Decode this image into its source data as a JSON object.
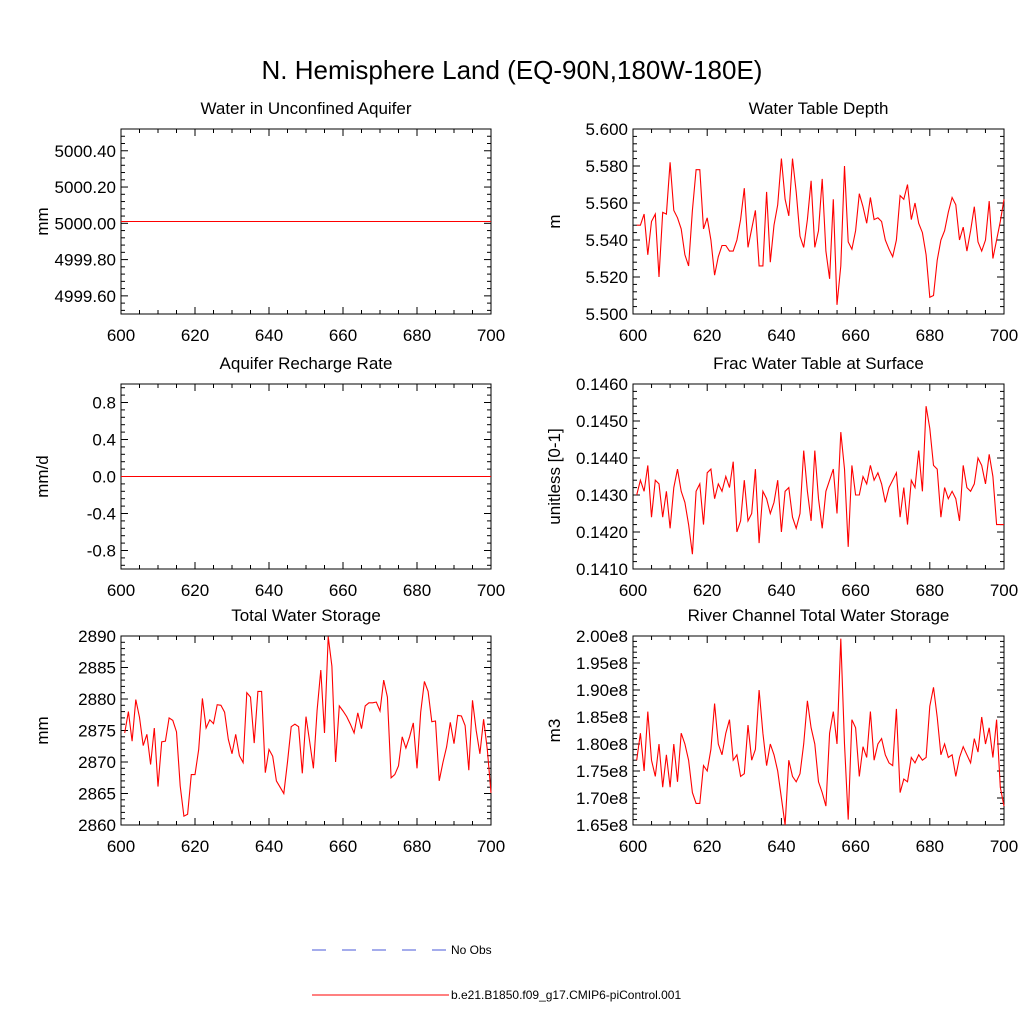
{
  "figure": {
    "title": "N. Hemisphere Land (EQ-90N,180W-180E)"
  },
  "legend": {
    "entries": [
      {
        "label": "No Obs",
        "color": "#4a5ad8",
        "style": "dashed"
      },
      {
        "label": "b.e21.B1850.f09_g17.CMIP6-piControl.001",
        "color": "#ff0000",
        "style": "solid"
      }
    ]
  },
  "chart_data": [
    {
      "type": "line",
      "title": "Water in Unconfined Aquifer",
      "xlabel": "",
      "ylabel": "mm",
      "xlim": [
        600,
        700
      ],
      "ylim": [
        4999.5,
        5000.52
      ],
      "xticks": [
        600,
        620,
        640,
        660,
        680,
        700
      ],
      "xtick_labels": [
        "600",
        "620",
        "640",
        "660",
        "680",
        "700"
      ],
      "yticks": [
        4999.6,
        4999.8,
        5000.0,
        5000.2,
        5000.4
      ],
      "ytick_labels": [
        "4999.60",
        "4999.80",
        "5000.00",
        "5000.20",
        "5000.40"
      ],
      "color": "#ff0000",
      "series": [
        {
          "x": [
            600,
            700
          ],
          "values": [
            5000.01,
            5000.01
          ]
        }
      ]
    },
    {
      "type": "line",
      "title": "Water Table Depth",
      "xlabel": "",
      "ylabel": "m",
      "xlim": [
        600,
        700
      ],
      "ylim": [
        5.5,
        5.6
      ],
      "xticks": [
        600,
        620,
        640,
        660,
        680,
        700
      ],
      "xtick_labels": [
        "600",
        "620",
        "640",
        "660",
        "680",
        "700"
      ],
      "yticks": [
        5.5,
        5.52,
        5.54,
        5.56,
        5.58,
        5.6
      ],
      "ytick_labels": [
        "5.500",
        "5.520",
        "5.540",
        "5.560",
        "5.580",
        "5.600"
      ],
      "color": "#ff0000",
      "series": [
        {
          "x0": 601,
          "values": [
            5.548,
            5.548,
            5.554,
            5.532,
            5.55,
            5.554,
            5.52,
            5.555,
            5.554,
            5.582,
            5.556,
            5.552,
            5.546,
            5.532,
            5.526,
            5.556,
            5.578,
            5.578,
            5.546,
            5.552,
            5.54,
            5.521,
            5.531,
            5.537,
            5.537,
            5.534,
            5.534,
            5.54,
            5.551,
            5.568,
            5.536,
            5.546,
            5.556,
            5.526,
            5.526,
            5.566,
            5.528,
            5.548,
            5.559,
            5.584,
            5.562,
            5.553,
            5.584,
            5.566,
            5.542,
            5.536,
            5.551,
            5.572,
            5.536,
            5.545,
            5.573,
            5.534,
            5.519,
            5.562,
            5.505,
            5.526,
            5.58,
            5.539,
            5.535,
            5.545,
            5.565,
            5.558,
            5.549,
            5.563,
            5.551,
            5.552,
            5.55,
            5.54,
            5.535,
            5.531,
            5.54,
            5.564,
            5.562,
            5.57,
            5.551,
            5.56,
            5.549,
            5.544,
            5.532,
            5.509,
            5.51,
            5.529,
            5.54,
            5.545,
            5.555,
            5.563,
            5.559,
            5.54,
            5.547,
            5.534,
            5.545,
            5.558,
            5.539,
            5.534,
            5.54,
            5.561,
            5.53,
            5.54,
            5.55,
            5.562
          ]
        }
      ]
    },
    {
      "type": "line",
      "title": "Aquifer Recharge Rate",
      "xlabel": "",
      "ylabel": "mm/d",
      "xlim": [
        600,
        700
      ],
      "ylim": [
        -1.0,
        1.0
      ],
      "xticks": [
        600,
        620,
        640,
        660,
        680,
        700
      ],
      "xtick_labels": [
        "600",
        "620",
        "640",
        "660",
        "680",
        "700"
      ],
      "yticks": [
        -0.8,
        -0.4,
        0.0,
        0.4,
        0.8
      ],
      "ytick_labels": [
        "-0.8",
        "-0.4",
        "0.0",
        "0.4",
        "0.8"
      ],
      "color": "#ff0000",
      "series": [
        {
          "x": [
            600,
            700
          ],
          "values": [
            0.0,
            0.0
          ]
        }
      ]
    },
    {
      "type": "line",
      "title": "Frac Water Table at Surface",
      "xlabel": "",
      "ylabel": "unitless [0-1]",
      "xlim": [
        600,
        700
      ],
      "ylim": [
        0.141,
        0.146
      ],
      "xticks": [
        600,
        620,
        640,
        660,
        680,
        700
      ],
      "xtick_labels": [
        "600",
        "620",
        "640",
        "660",
        "680",
        "700"
      ],
      "yticks": [
        0.141,
        0.142,
        0.143,
        0.144,
        0.145,
        0.146
      ],
      "ytick_labels": [
        "0.1410",
        "0.1420",
        "0.1430",
        "0.1440",
        "0.1450",
        "0.1460"
      ],
      "color": "#ff0000",
      "series": [
        {
          "x0": 601,
          "values": [
            0.143,
            0.1434,
            0.1431,
            0.1438,
            0.1424,
            0.1434,
            0.1433,
            0.1424,
            0.1431,
            0.1421,
            0.1432,
            0.1437,
            0.1431,
            0.1428,
            0.1422,
            0.1414,
            0.1431,
            0.1433,
            0.1422,
            0.1436,
            0.1437,
            0.1429,
            0.1433,
            0.1431,
            0.1435,
            0.1432,
            0.1439,
            0.142,
            0.1423,
            0.1434,
            0.1423,
            0.1425,
            0.1437,
            0.1417,
            0.1431,
            0.1429,
            0.1425,
            0.1428,
            0.1434,
            0.142,
            0.1431,
            0.1432,
            0.1424,
            0.1421,
            0.1425,
            0.1442,
            0.1431,
            0.1423,
            0.1442,
            0.1429,
            0.1421,
            0.1431,
            0.1434,
            0.1437,
            0.1425,
            0.1447,
            0.1437,
            0.1416,
            0.1438,
            0.143,
            0.143,
            0.1435,
            0.1433,
            0.1438,
            0.1434,
            0.1436,
            0.1433,
            0.1428,
            0.1432,
            0.1434,
            0.1436,
            0.1424,
            0.1432,
            0.1422,
            0.1434,
            0.1432,
            0.1442,
            0.1431,
            0.1454,
            0.1448,
            0.1438,
            0.1437,
            0.1424,
            0.1432,
            0.1429,
            0.1431,
            0.1429,
            0.1423,
            0.1438,
            0.1432,
            0.1431,
            0.1433,
            0.144,
            0.1438,
            0.1433,
            0.1441,
            0.1435,
            0.1422,
            0.1422,
            0.1422
          ]
        }
      ]
    },
    {
      "type": "line",
      "title": "Total Water Storage",
      "xlabel": "",
      "ylabel": "mm",
      "xlim": [
        600,
        700
      ],
      "ylim": [
        2860,
        2890
      ],
      "xticks": [
        600,
        620,
        640,
        660,
        680,
        700
      ],
      "xtick_labels": [
        "600",
        "620",
        "640",
        "660",
        "680",
        "700"
      ],
      "yticks": [
        2860,
        2865,
        2870,
        2875,
        2880,
        2885,
        2890
      ],
      "ytick_labels": [
        "2860",
        "2865",
        "2870",
        "2875",
        "2880",
        "2885",
        "2890"
      ],
      "color": "#ff0000",
      "series": [
        {
          "x0": 601,
          "values": [
            2874.6,
            2878.0,
            2873.3,
            2879.9,
            2877.1,
            2872.6,
            2874.4,
            2869.6,
            2875.4,
            2866.1,
            2873.2,
            2873.3,
            2877.0,
            2876.6,
            2874.8,
            2866.2,
            2861.4,
            2861.7,
            2868.0,
            2868.0,
            2872.0,
            2880.1,
            2875.4,
            2876.7,
            2876.1,
            2879.1,
            2879.0,
            2877.9,
            2873.6,
            2871.3,
            2874.4,
            2871.0,
            2869.9,
            2881.0,
            2880.3,
            2873.0,
            2881.2,
            2881.2,
            2868.3,
            2872.0,
            2870.9,
            2867.0,
            2866.0,
            2865.0,
            2870.0,
            2875.6,
            2876.0,
            2875.6,
            2868.2,
            2877.2,
            2873.2,
            2869.0,
            2878.2,
            2884.6,
            2874.6,
            2889.9,
            2885.2,
            2870.0,
            2878.9,
            2878.1,
            2877.2,
            2876.0,
            2874.6,
            2877.8,
            2875.3,
            2878.9,
            2879.4,
            2879.4,
            2879.5,
            2878.1,
            2883.0,
            2880.3,
            2867.5,
            2868.0,
            2869.4,
            2874.0,
            2872.2,
            2874.0,
            2876.2,
            2869.0,
            2877.9,
            2882.8,
            2881.2,
            2876.4,
            2876.5,
            2867.0,
            2869.9,
            2872.4,
            2876.3,
            2872.9,
            2877.4,
            2877.3,
            2875.8,
            2868.7,
            2879.8,
            2875.0,
            2871.3,
            2876.8,
            2872.0,
            2865.1
          ]
        }
      ]
    },
    {
      "type": "line",
      "title": "River Channel Total Water Storage",
      "xlabel": "",
      "ylabel": "m3",
      "xlim": [
        600,
        700
      ],
      "ylim": [
        165000000.0,
        200000000.0
      ],
      "xticks": [
        600,
        620,
        640,
        660,
        680,
        700
      ],
      "xtick_labels": [
        "600",
        "620",
        "640",
        "660",
        "680",
        "700"
      ],
      "yticks": [
        165000000.0,
        170000000.0,
        175000000.0,
        180000000.0,
        185000000.0,
        190000000.0,
        195000000.0,
        200000000.0
      ],
      "ytick_labels": [
        "1.65e8",
        "1.70e8",
        "1.75e8",
        "1.80e8",
        "1.85e8",
        "1.90e8",
        "1.95e8",
        "2.00e8"
      ],
      "color": "#ff0000",
      "series": [
        {
          "x0": 601,
          "values": [
            177000000.0,
            182000000.0,
            175000000.0,
            186000000.0,
            177000000.0,
            174000000.0,
            180000000.0,
            172000000.0,
            178000000.0,
            172000000.0,
            180000000.0,
            173000000.0,
            182000000.0,
            180000000.0,
            177000000.0,
            171000000.0,
            169000000.0,
            169000000.0,
            176000000.0,
            175000000.0,
            179000000.0,
            187500000.0,
            180000000.0,
            178000000.0,
            182000000.0,
            184500000.0,
            177000000.0,
            178000000.0,
            174000000.0,
            174500000.0,
            183500000.0,
            177000000.0,
            179000000.0,
            190000000.0,
            182000000.0,
            176000000.0,
            180000000.0,
            178000000.0,
            175000000.0,
            170000000.0,
            165000000.0,
            177000000.0,
            174000000.0,
            173000000.0,
            174500000.0,
            180000000.0,
            188000000.0,
            183000000.0,
            180000000.0,
            173000000.0,
            171000000.0,
            168500000.0,
            182000000.0,
            186000000.0,
            180000000.0,
            199500000.0,
            180000000.0,
            166000000.0,
            184500000.0,
            183000000.0,
            174000000.0,
            179500000.0,
            177500000.0,
            186000000.0,
            177000000.0,
            180000000.0,
            181000000.0,
            178000000.0,
            176500000.0,
            176000000.0,
            186500000.0,
            171000000.0,
            173500000.0,
            173000000.0,
            177500000.0,
            176500000.0,
            178000000.0,
            177000000.0,
            177500000.0,
            187000000.0,
            190500000.0,
            185000000.0,
            178000000.0,
            180000000.0,
            177500000.0,
            178000000.0,
            174000000.0,
            177500000.0,
            179500000.0,
            178000000.0,
            176500000.0,
            181000000.0,
            178500000.0,
            185000000.0,
            180000000.0,
            183000000.0,
            177500000.0,
            184500000.0,
            172000000.0,
            168500000.0
          ]
        }
      ]
    }
  ]
}
